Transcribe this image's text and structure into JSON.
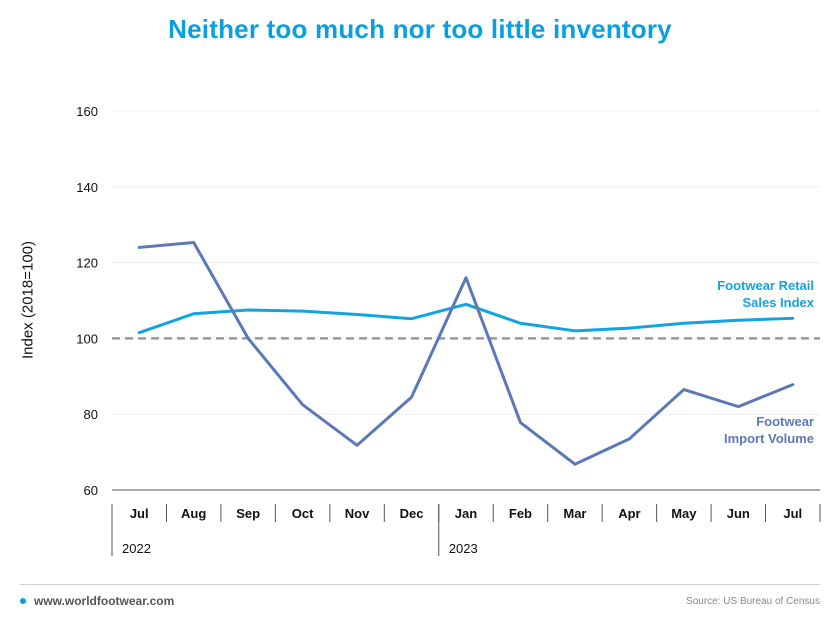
{
  "chart_data": {
    "type": "line",
    "title": "Neither too much nor too little inventory",
    "ylabel": "Index (2018=100)",
    "xlabel": "",
    "ylim": [
      60,
      160
    ],
    "yticks": [
      60,
      80,
      100,
      120,
      140,
      160
    ],
    "categories": [
      "Jul",
      "Aug",
      "Sep",
      "Oct",
      "Nov",
      "Dec",
      "Jan",
      "Feb",
      "Mar",
      "Apr",
      "May",
      "Jun",
      "Jul"
    ],
    "year_labels": [
      {
        "label": "2022",
        "start_index": 0
      },
      {
        "label": "2023",
        "start_index": 6
      }
    ],
    "reference_line": {
      "value": 100,
      "style": "dashed",
      "color": "#999999"
    },
    "grid": true,
    "series": [
      {
        "name": "Footwear Retail Sales Index",
        "label_lines": [
          "Footwear Retail",
          "Sales Index"
        ],
        "color": "#13a3df",
        "values": [
          101.5,
          106.5,
          107.5,
          107.2,
          106.3,
          105.2,
          109,
          104,
          102,
          102.7,
          104,
          104.8,
          105.3
        ]
      },
      {
        "name": "Footwear Import Volume",
        "label_lines": [
          "Footwear",
          "Import Volume"
        ],
        "color": "#5b79b8",
        "values": [
          124,
          125.3,
          100,
          82.5,
          71.8,
          84.5,
          116,
          77.8,
          66.8,
          73.5,
          86.5,
          82,
          87.8
        ]
      }
    ]
  },
  "footer": {
    "website": "www.worldfootwear.com",
    "source": "Source: US Bureau of Census"
  },
  "colors": {
    "title": "#0aa0e0",
    "grid": "#eeeeee",
    "axis": "#555555"
  }
}
